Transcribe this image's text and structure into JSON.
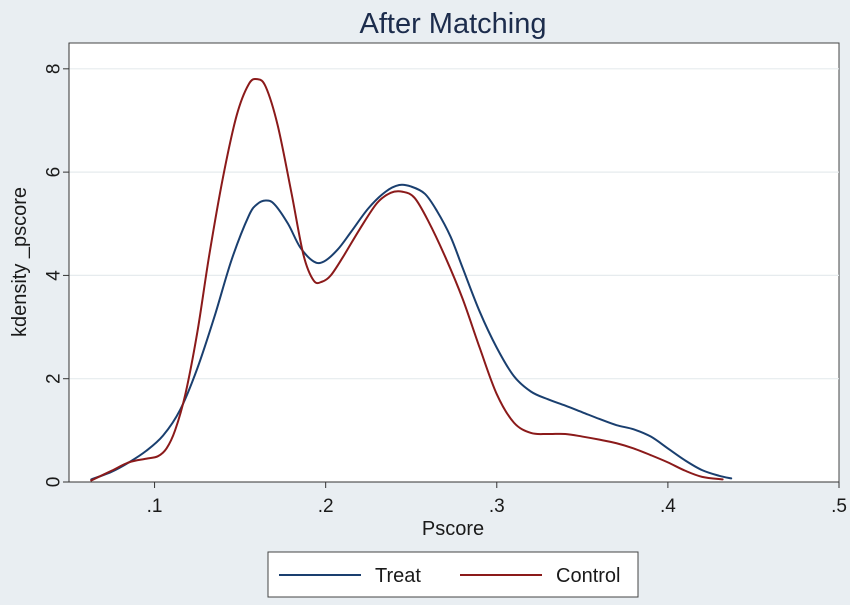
{
  "chart_data": {
    "type": "line",
    "title": "After Matching",
    "xlabel": "Pscore",
    "ylabel": "kdensity _pscore",
    "xlim": [
      0.05,
      0.5
    ],
    "ylim": [
      0,
      8.5
    ],
    "x_ticks": [
      0.1,
      0.2,
      0.3,
      0.4,
      0.5
    ],
    "x_tick_labels": [
      ".1",
      ".2",
      ".3",
      ".4",
      ".5"
    ],
    "y_ticks": [
      0,
      2,
      4,
      6,
      8
    ],
    "y_tick_labels": [
      "0",
      "2",
      "4",
      "6",
      "8"
    ],
    "grid": "horizontal",
    "legend_position": "bottom",
    "series": [
      {
        "name": "Treat",
        "color": "#1a3f6f",
        "points": [
          [
            0.063,
            0.05
          ],
          [
            0.075,
            0.2
          ],
          [
            0.085,
            0.38
          ],
          [
            0.095,
            0.6
          ],
          [
            0.105,
            0.9
          ],
          [
            0.115,
            1.4
          ],
          [
            0.125,
            2.2
          ],
          [
            0.135,
            3.2
          ],
          [
            0.145,
            4.3
          ],
          [
            0.155,
            5.15
          ],
          [
            0.16,
            5.38
          ],
          [
            0.165,
            5.45
          ],
          [
            0.17,
            5.38
          ],
          [
            0.178,
            5.0
          ],
          [
            0.185,
            4.55
          ],
          [
            0.193,
            4.27
          ],
          [
            0.199,
            4.27
          ],
          [
            0.207,
            4.5
          ],
          [
            0.215,
            4.85
          ],
          [
            0.225,
            5.3
          ],
          [
            0.235,
            5.62
          ],
          [
            0.243,
            5.75
          ],
          [
            0.25,
            5.72
          ],
          [
            0.258,
            5.58
          ],
          [
            0.265,
            5.25
          ],
          [
            0.273,
            4.75
          ],
          [
            0.28,
            4.15
          ],
          [
            0.29,
            3.3
          ],
          [
            0.3,
            2.6
          ],
          [
            0.31,
            2.05
          ],
          [
            0.32,
            1.75
          ],
          [
            0.33,
            1.6
          ],
          [
            0.34,
            1.48
          ],
          [
            0.35,
            1.35
          ],
          [
            0.36,
            1.22
          ],
          [
            0.37,
            1.1
          ],
          [
            0.38,
            1.02
          ],
          [
            0.39,
            0.88
          ],
          [
            0.4,
            0.65
          ],
          [
            0.41,
            0.42
          ],
          [
            0.42,
            0.23
          ],
          [
            0.43,
            0.12
          ],
          [
            0.437,
            0.07
          ]
        ]
      },
      {
        "name": "Control",
        "color": "#8b1a1a",
        "points": [
          [
            0.063,
            0.03
          ],
          [
            0.075,
            0.22
          ],
          [
            0.085,
            0.38
          ],
          [
            0.095,
            0.45
          ],
          [
            0.102,
            0.5
          ],
          [
            0.107,
            0.65
          ],
          [
            0.112,
            1.0
          ],
          [
            0.118,
            1.7
          ],
          [
            0.125,
            2.9
          ],
          [
            0.132,
            4.4
          ],
          [
            0.14,
            5.9
          ],
          [
            0.148,
            7.1
          ],
          [
            0.155,
            7.7
          ],
          [
            0.16,
            7.8
          ],
          [
            0.165,
            7.65
          ],
          [
            0.172,
            6.9
          ],
          [
            0.18,
            5.6
          ],
          [
            0.187,
            4.4
          ],
          [
            0.193,
            3.9
          ],
          [
            0.198,
            3.88
          ],
          [
            0.203,
            4.0
          ],
          [
            0.21,
            4.35
          ],
          [
            0.22,
            4.9
          ],
          [
            0.23,
            5.4
          ],
          [
            0.238,
            5.6
          ],
          [
            0.245,
            5.62
          ],
          [
            0.252,
            5.5
          ],
          [
            0.26,
            5.05
          ],
          [
            0.27,
            4.35
          ],
          [
            0.28,
            3.55
          ],
          [
            0.29,
            2.6
          ],
          [
            0.3,
            1.7
          ],
          [
            0.31,
            1.15
          ],
          [
            0.32,
            0.95
          ],
          [
            0.33,
            0.93
          ],
          [
            0.34,
            0.93
          ],
          [
            0.35,
            0.88
          ],
          [
            0.36,
            0.82
          ],
          [
            0.37,
            0.75
          ],
          [
            0.38,
            0.65
          ],
          [
            0.39,
            0.52
          ],
          [
            0.4,
            0.38
          ],
          [
            0.41,
            0.22
          ],
          [
            0.42,
            0.1
          ],
          [
            0.432,
            0.05
          ]
        ]
      }
    ]
  }
}
